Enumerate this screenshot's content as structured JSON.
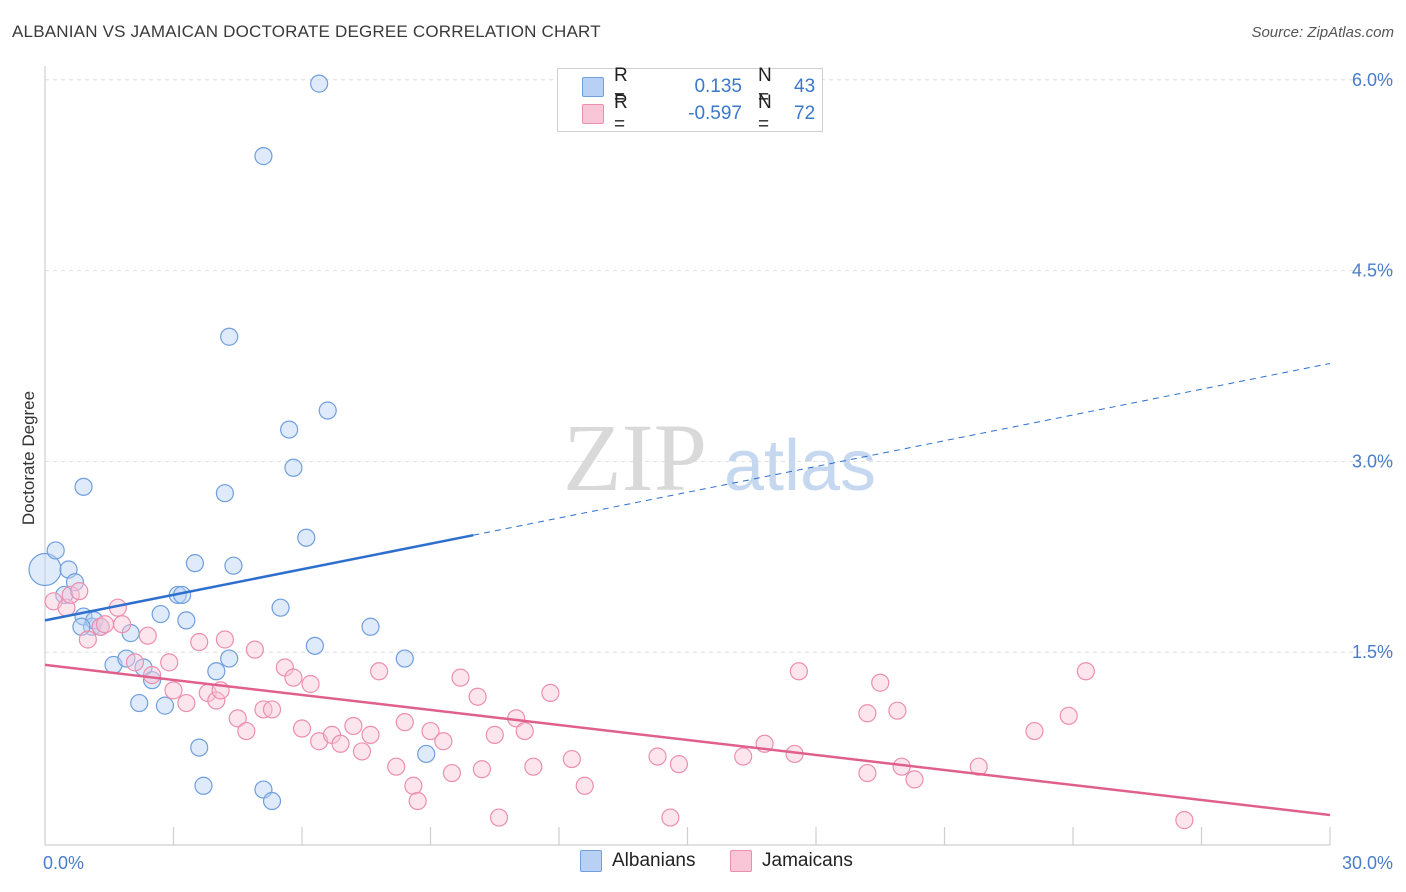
{
  "title": "ALBANIAN VS JAMAICAN DOCTORATE DEGREE CORRELATION CHART",
  "source": "Source: ZipAtlas.com",
  "watermark_zip": "ZIP",
  "watermark_atlas": "atlas",
  "legend": {
    "r_label": "R =",
    "n_label": "N =",
    "rows": [
      {
        "name": "Albanians",
        "r": "0.135",
        "n": "43"
      },
      {
        "name": "Jamaicans",
        "r": "-0.597",
        "n": "72"
      }
    ]
  },
  "chart_data": {
    "type": "scatter",
    "title": "ALBANIAN VS JAMAICAN DOCTORATE DEGREE CORRELATION CHART",
    "xlabel": "",
    "ylabel": "Doctorate Degree",
    "xlim": [
      0,
      30
    ],
    "ylim": [
      0,
      6.25
    ],
    "x_tick_labels": [
      {
        "value": 0,
        "label": "0.0%"
      },
      {
        "value": 30,
        "label": "30.0%"
      }
    ],
    "y_tick_labels": [
      {
        "value": 1.5,
        "label": "1.5%"
      },
      {
        "value": 3.0,
        "label": "3.0%"
      },
      {
        "value": 4.5,
        "label": "4.5%"
      },
      {
        "value": 6.0,
        "label": "6.0%"
      }
    ],
    "colors": {
      "Albanians": "#6f9fde",
      "Jamaicans": "#ec8fae",
      "Albanians_line": "#2e6fce",
      "Jamaicans_line": "#e0608d"
    },
    "series": [
      {
        "name": "Albanians",
        "points": [
          [
            0.0,
            2.15
          ],
          [
            0.25,
            2.3
          ],
          [
            0.55,
            2.15
          ],
          [
            0.7,
            2.05
          ],
          [
            0.45,
            1.95
          ],
          [
            0.9,
            1.78
          ],
          [
            1.1,
            1.7
          ],
          [
            1.15,
            1.75
          ],
          [
            1.3,
            1.7
          ],
          [
            0.85,
            1.7
          ],
          [
            2.0,
            1.65
          ],
          [
            2.7,
            1.8
          ],
          [
            3.1,
            1.95
          ],
          [
            3.3,
            1.75
          ],
          [
            3.2,
            1.95
          ],
          [
            3.5,
            2.2
          ],
          [
            4.3,
            3.98
          ],
          [
            4.3,
            1.45
          ],
          [
            4.4,
            2.18
          ],
          [
            4.0,
            1.35
          ],
          [
            3.6,
            0.75
          ],
          [
            3.7,
            0.45
          ],
          [
            4.2,
            2.75
          ],
          [
            5.1,
            5.4
          ],
          [
            5.1,
            0.42
          ],
          [
            5.3,
            0.33
          ],
          [
            5.5,
            1.85
          ],
          [
            5.7,
            3.25
          ],
          [
            5.8,
            2.95
          ],
          [
            6.1,
            2.4
          ],
          [
            6.3,
            1.55
          ],
          [
            6.4,
            5.97
          ],
          [
            6.6,
            3.4
          ],
          [
            7.6,
            1.7
          ],
          [
            8.4,
            1.45
          ],
          [
            8.9,
            0.7
          ],
          [
            0.9,
            2.8
          ],
          [
            1.6,
            1.4
          ],
          [
            1.9,
            1.45
          ],
          [
            2.3,
            1.38
          ],
          [
            2.5,
            1.28
          ],
          [
            2.2,
            1.1
          ],
          [
            2.8,
            1.08
          ]
        ],
        "trend": {
          "x": [
            0,
            10
          ],
          "y": [
            1.75,
            2.42
          ],
          "dashed_extension": {
            "x": [
              10,
              30
            ],
            "y": [
              2.42,
              3.77
            ]
          }
        }
      },
      {
        "name": "Jamaicans",
        "points": [
          [
            0.2,
            1.9
          ],
          [
            0.5,
            1.85
          ],
          [
            0.6,
            1.95
          ],
          [
            0.8,
            1.98
          ],
          [
            1.0,
            1.6
          ],
          [
            1.3,
            1.7
          ],
          [
            1.4,
            1.72
          ],
          [
            1.7,
            1.85
          ],
          [
            1.8,
            1.72
          ],
          [
            2.1,
            1.42
          ],
          [
            2.4,
            1.63
          ],
          [
            2.5,
            1.32
          ],
          [
            2.9,
            1.42
          ],
          [
            3.0,
            1.2
          ],
          [
            3.3,
            1.1
          ],
          [
            3.6,
            1.58
          ],
          [
            3.8,
            1.18
          ],
          [
            4.0,
            1.12
          ],
          [
            4.1,
            1.2
          ],
          [
            4.2,
            1.6
          ],
          [
            4.5,
            0.98
          ],
          [
            4.7,
            0.88
          ],
          [
            4.9,
            1.52
          ],
          [
            5.1,
            1.05
          ],
          [
            5.3,
            1.05
          ],
          [
            5.6,
            1.38
          ],
          [
            5.8,
            1.3
          ],
          [
            6.0,
            0.9
          ],
          [
            6.2,
            1.25
          ],
          [
            6.4,
            0.8
          ],
          [
            6.7,
            0.85
          ],
          [
            6.9,
            0.78
          ],
          [
            7.2,
            0.92
          ],
          [
            7.4,
            0.72
          ],
          [
            7.6,
            0.85
          ],
          [
            7.8,
            1.35
          ],
          [
            8.2,
            0.6
          ],
          [
            8.4,
            0.95
          ],
          [
            8.6,
            0.45
          ],
          [
            8.7,
            0.33
          ],
          [
            9.0,
            0.88
          ],
          [
            9.3,
            0.8
          ],
          [
            9.5,
            0.55
          ],
          [
            9.7,
            1.3
          ],
          [
            10.1,
            1.15
          ],
          [
            10.2,
            0.58
          ],
          [
            10.5,
            0.85
          ],
          [
            10.6,
            0.2
          ],
          [
            11.0,
            0.98
          ],
          [
            11.2,
            0.88
          ],
          [
            11.4,
            0.6
          ],
          [
            11.8,
            1.18
          ],
          [
            12.3,
            0.66
          ],
          [
            12.6,
            0.45
          ],
          [
            14.3,
            0.68
          ],
          [
            14.6,
            0.2
          ],
          [
            14.8,
            0.62
          ],
          [
            16.3,
            0.68
          ],
          [
            16.8,
            0.78
          ],
          [
            17.5,
            0.7
          ],
          [
            17.6,
            1.35
          ],
          [
            19.2,
            0.55
          ],
          [
            19.2,
            1.02
          ],
          [
            19.5,
            1.26
          ],
          [
            19.9,
            1.04
          ],
          [
            20.0,
            0.6
          ],
          [
            20.3,
            0.5
          ],
          [
            21.8,
            0.6
          ],
          [
            23.1,
            0.88
          ],
          [
            23.9,
            1.0
          ],
          [
            24.3,
            1.35
          ],
          [
            26.6,
            0.18
          ]
        ],
        "trend": {
          "x": [
            0,
            30
          ],
          "y": [
            1.4,
            0.22
          ]
        }
      }
    ]
  }
}
